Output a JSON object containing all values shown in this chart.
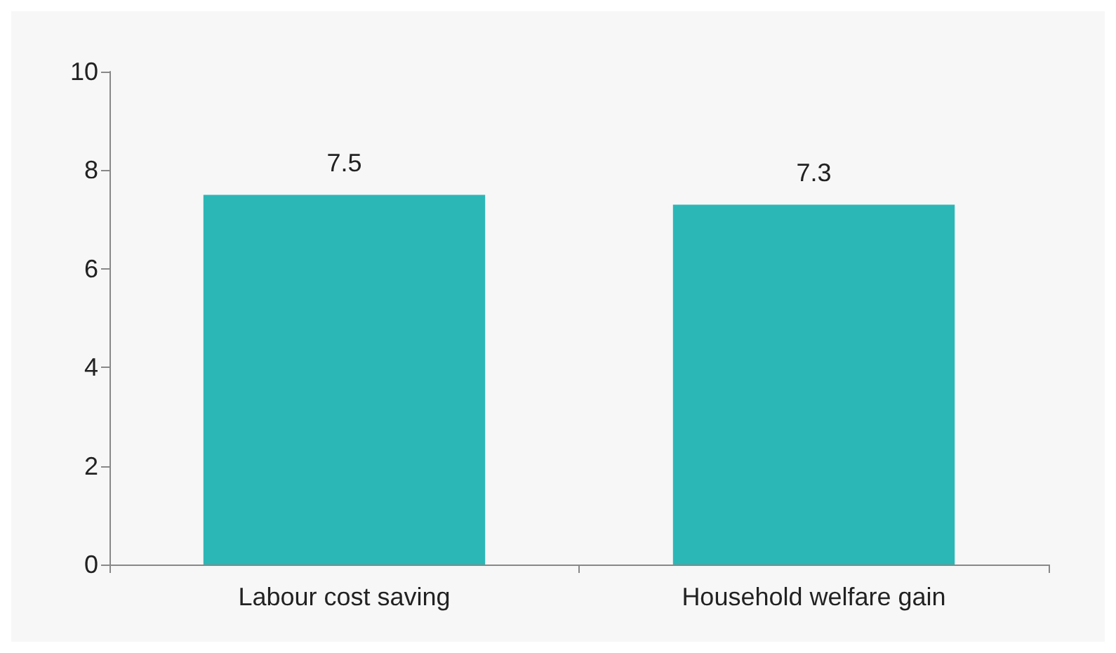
{
  "chart_data": {
    "type": "bar",
    "categories": [
      "Labour cost saving",
      "Household welfare gain"
    ],
    "values": [
      7.5,
      7.3
    ],
    "color": "#2cb7b7",
    "data_labels": true,
    "ylim": [
      0,
      10
    ],
    "yticks": [
      0,
      2,
      4,
      6,
      8,
      10
    ],
    "grid": false
  }
}
